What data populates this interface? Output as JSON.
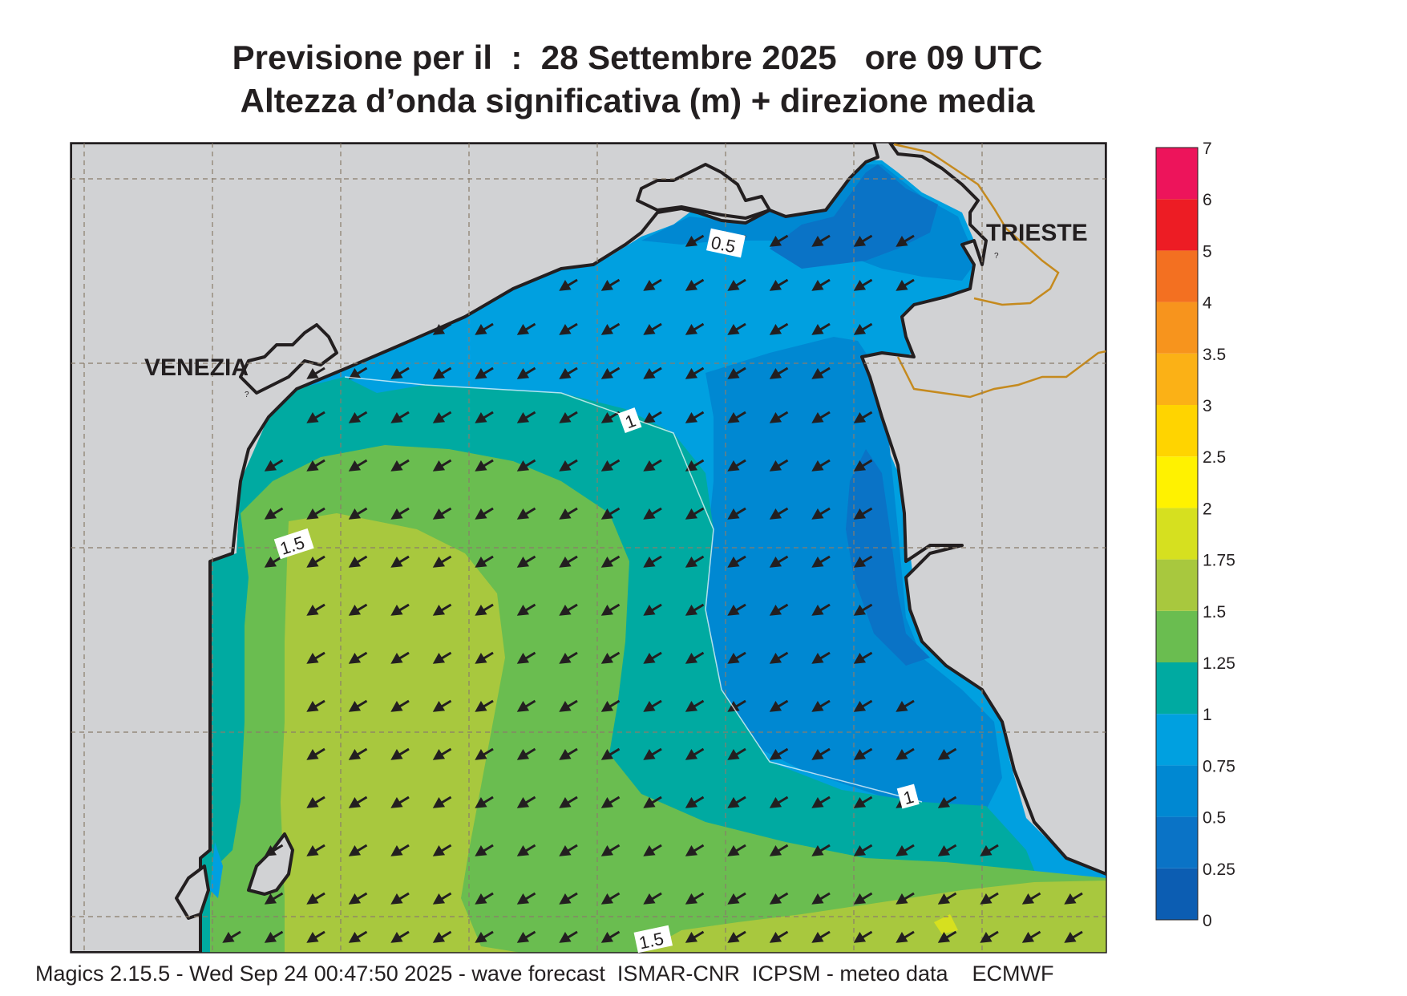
{
  "header": {
    "title_line1": "Previsione per il  :  28 Settembre 2025   ore 09 UTC",
    "title_line2": "Altezza d’onda significativa (m) + direzione media"
  },
  "map": {
    "cities": [
      {
        "name": "VENEZIA"
      },
      {
        "name": "TRIESTE"
      }
    ],
    "contour_labels": [
      "0.5",
      "1",
      "1.5",
      "1",
      "1.5"
    ],
    "mean_wave_direction": "from north-east (arrows point south-west)",
    "colors": {
      "land": "#d1d2d4",
      "frame": "#231f20",
      "graticule": "#8a7d6b",
      "border": "#c58a1e"
    }
  },
  "legend": {
    "levels": [
      "0",
      "0.25",
      "0.5",
      "0.75",
      "1",
      "1.25",
      "1.5",
      "1.75",
      "2",
      "2.5",
      "3",
      "3.5",
      "4",
      "5",
      "6",
      "7"
    ],
    "colors": [
      "#0c5db2",
      "#0a73c6",
      "#0088d2",
      "#00a0e0",
      "#00aaa1",
      "#6abd50",
      "#a8c83e",
      "#d6e01f",
      "#fff200",
      "#ffd400",
      "#fbb116",
      "#f7941d",
      "#f37021",
      "#ed1c24",
      "#ed145b"
    ]
  },
  "footer": {
    "text": "Magics 2.15.5 - Wed Sep 24 00:47:50 2025 - wave forecast  ISMAR-CNR  ICPSM - meteo data    ECMWF"
  }
}
